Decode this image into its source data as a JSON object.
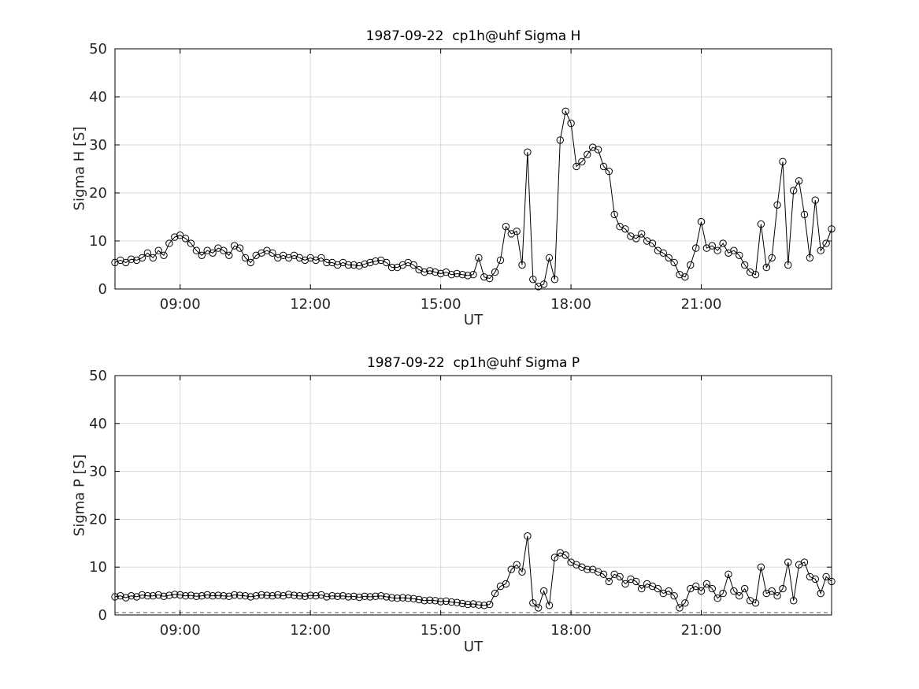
{
  "figure": {
    "background": "#ffffff",
    "axes_color": "#000000",
    "grid_color": "#d9d9d9",
    "series_color": "#000000"
  },
  "chart_data": [
    {
      "type": "line",
      "title": "1987-09-22  cp1h@uhf Sigma H",
      "xlabel": "UT",
      "ylabel": "Sigma H [S]",
      "xlim": [
        7.5,
        24.0
      ],
      "ylim": [
        0,
        50
      ],
      "xtick_values": [
        9,
        12,
        15,
        18,
        21
      ],
      "xtick_labels": [
        "09:00",
        "12:00",
        "15:00",
        "18:00",
        "21:00"
      ],
      "ytick_values": [
        0,
        10,
        20,
        30,
        40,
        50
      ],
      "ytick_labels": [
        "0",
        "10",
        "20",
        "30",
        "40",
        "50"
      ],
      "grid": true,
      "legend": "none",
      "marker": "open-circle",
      "line_color": "#000000",
      "x_unit": "hours UT",
      "x_start": 7.5,
      "x_step": 0.125,
      "values": [
        5.5,
        6.0,
        5.5,
        6.2,
        6.0,
        6.5,
        7.5,
        6.5,
        8.0,
        7.0,
        9.5,
        10.8,
        11.2,
        10.5,
        9.5,
        8.0,
        7.0,
        8.0,
        7.5,
        8.5,
        8.0,
        7.0,
        9.0,
        8.5,
        6.5,
        5.5,
        7.0,
        7.5,
        8.0,
        7.5,
        6.5,
        7.0,
        6.5,
        7.0,
        6.5,
        6.0,
        6.5,
        6.0,
        6.5,
        5.5,
        5.5,
        5.0,
        5.5,
        5.0,
        5.0,
        4.8,
        5.2,
        5.5,
        5.8,
        6.0,
        5.5,
        4.5,
        4.5,
        5.0,
        5.5,
        5.0,
        4.0,
        3.5,
        3.8,
        3.5,
        3.2,
        3.5,
        3.0,
        3.2,
        3.0,
        2.8,
        3.0,
        6.5,
        2.5,
        2.2,
        3.5,
        6.0,
        13.0,
        11.5,
        12.0,
        5.0,
        28.5,
        2.0,
        0.5,
        1.0,
        6.5,
        2.0,
        31.0,
        37.0,
        34.5,
        25.5,
        26.5,
        28.0,
        29.5,
        29.0,
        25.5,
        24.5,
        15.5,
        13.0,
        12.5,
        11.0,
        10.5,
        11.5,
        10.0,
        9.5,
        8.0,
        7.5,
        6.5,
        5.5,
        3.0,
        2.5,
        5.0,
        8.5,
        14.0,
        8.5,
        9.0,
        8.0,
        9.5,
        7.5,
        8.0,
        7.0,
        5.0,
        3.5,
        3.0,
        13.5,
        4.5,
        6.5,
        17.5,
        26.5,
        5.0,
        20.5,
        22.5,
        15.5,
        6.5,
        18.5,
        8.0,
        9.5,
        12.5
      ]
    },
    {
      "type": "line",
      "title": "1987-09-22  cp1h@uhf Sigma P",
      "xlabel": "UT",
      "ylabel": "Sigma P [S]",
      "xlim": [
        7.5,
        24.0
      ],
      "ylim": [
        0,
        50
      ],
      "xtick_values": [
        9,
        12,
        15,
        18,
        21
      ],
      "xtick_labels": [
        "09:00",
        "12:00",
        "15:00",
        "18:00",
        "21:00"
      ],
      "ytick_values": [
        0,
        10,
        20,
        30,
        40,
        50
      ],
      "ytick_labels": [
        "0",
        "10",
        "20",
        "30",
        "40",
        "50"
      ],
      "grid": true,
      "legend": "none",
      "marker": "open-circle",
      "line_color": "#000000",
      "baseline_dashed_y": 0.5,
      "x_unit": "hours UT",
      "x_start": 7.5,
      "x_step": 0.125,
      "values": [
        3.8,
        4.0,
        3.6,
        4.0,
        3.8,
        4.2,
        4.0,
        4.0,
        4.2,
        3.9,
        4.1,
        4.3,
        4.2,
        4.0,
        4.1,
        3.9,
        4.0,
        4.2,
        4.0,
        4.1,
        4.0,
        3.9,
        4.2,
        4.1,
        4.0,
        3.8,
        4.0,
        4.2,
        4.1,
        4.0,
        4.2,
        4.0,
        4.3,
        4.1,
        4.0,
        3.9,
        4.1,
        4.0,
        4.2,
        3.8,
        4.0,
        3.9,
        4.0,
        3.8,
        3.9,
        3.7,
        3.9,
        3.8,
        3.9,
        4.0,
        3.8,
        3.6,
        3.5,
        3.6,
        3.5,
        3.4,
        3.2,
        3.0,
        3.1,
        3.0,
        2.8,
        2.9,
        2.7,
        2.6,
        2.4,
        2.2,
        2.3,
        2.1,
        2.0,
        2.2,
        4.5,
        6.0,
        6.5,
        9.5,
        10.5,
        9.0,
        16.5,
        2.5,
        1.5,
        5.0,
        2.0,
        12.0,
        13.0,
        12.5,
        11.0,
        10.5,
        10.0,
        9.5,
        9.5,
        9.0,
        8.5,
        7.0,
        8.5,
        8.0,
        6.5,
        7.5,
        7.0,
        5.5,
        6.5,
        6.0,
        5.5,
        4.5,
        5.0,
        4.0,
        1.5,
        2.5,
        5.5,
        6.0,
        5.0,
        6.5,
        5.5,
        3.5,
        4.5,
        8.5,
        5.0,
        4.0,
        5.5,
        3.0,
        2.5,
        10.0,
        4.5,
        5.0,
        4.0,
        5.5,
        11.0,
        3.0,
        10.5,
        11.0,
        8.0,
        7.5,
        4.5,
        8.0,
        7.0
      ]
    }
  ]
}
